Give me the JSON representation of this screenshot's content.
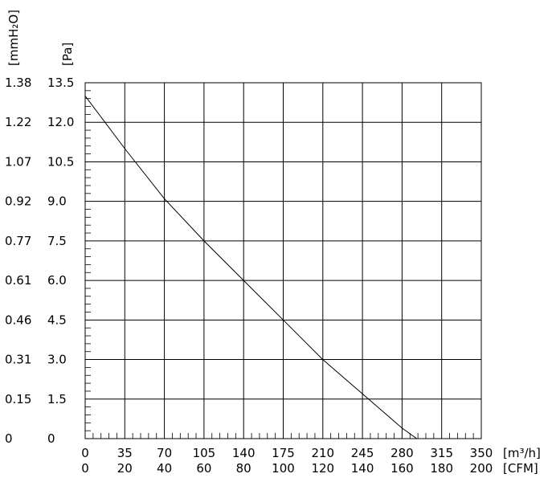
{
  "chart_data": {
    "type": "line",
    "title": "",
    "x_axis_primary": {
      "unit": "[m³/h]",
      "range": [
        0,
        350
      ],
      "ticks": [
        "0",
        "35",
        "70",
        "105",
        "140",
        "175",
        "210",
        "245",
        "280",
        "315",
        "350"
      ]
    },
    "x_axis_secondary": {
      "unit": "[CFM]",
      "ticks": [
        "0",
        "20",
        "40",
        "60",
        "80",
        "100",
        "120",
        "140",
        "160",
        "180",
        "200"
      ]
    },
    "y_axis_primary": {
      "unit": "[Pa]",
      "range": [
        0,
        13.5
      ],
      "ticks": [
        "0",
        "1.5",
        "3.0",
        "4.5",
        "6.0",
        "7.5",
        "9.0",
        "10.5",
        "12.0",
        "13.5"
      ]
    },
    "y_axis_secondary": {
      "unit": "[mmH₂O]",
      "ticks": [
        "0",
        "0.15",
        "0.31",
        "0.46",
        "0.61",
        "0.77",
        "0.92",
        "1.07",
        "1.22",
        "1.38"
      ]
    },
    "grid": true,
    "series": [
      {
        "x": [
          0,
          35,
          70,
          105,
          140,
          175,
          210,
          245,
          280,
          293
        ],
        "y": [
          13.0,
          11.0,
          9.1,
          7.5,
          6.0,
          4.5,
          3.0,
          1.7,
          0.4,
          0.0
        ]
      }
    ]
  }
}
